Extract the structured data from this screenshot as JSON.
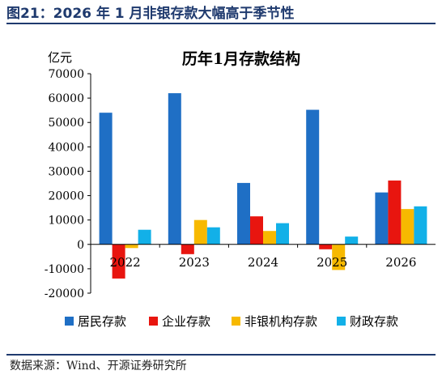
{
  "figure": {
    "title": "图21：2026 年 1 月非银存款大幅高于季节性",
    "source": "数据来源：Wind、开源证券研究所"
  },
  "chart_data": {
    "type": "bar",
    "title": "历年1月存款结构",
    "unit_label": "亿元",
    "categories": [
      "2022",
      "2023",
      "2024",
      "2025",
      "2026"
    ],
    "ylim": [
      -20000,
      70000
    ],
    "yticks": [
      -20000,
      -10000,
      0,
      10000,
      20000,
      30000,
      40000,
      50000,
      60000,
      70000
    ],
    "grid": false,
    "legend_position": "bottom",
    "series": [
      {
        "name": "居民存款",
        "color": "#1f6fc5",
        "values": [
          54000,
          62000,
          25200,
          55200,
          21300
        ]
      },
      {
        "name": "企业存款",
        "color": "#e8150f",
        "values": [
          -14000,
          -4000,
          11500,
          -2000,
          26200
        ]
      },
      {
        "name": "非银机构存款",
        "color": "#f7b900",
        "values": [
          -1500,
          10000,
          5500,
          -10500,
          14500
        ]
      },
      {
        "name": "财政存款",
        "color": "#12b0e8",
        "values": [
          6000,
          7000,
          8700,
          3200,
          15600
        ]
      }
    ]
  }
}
